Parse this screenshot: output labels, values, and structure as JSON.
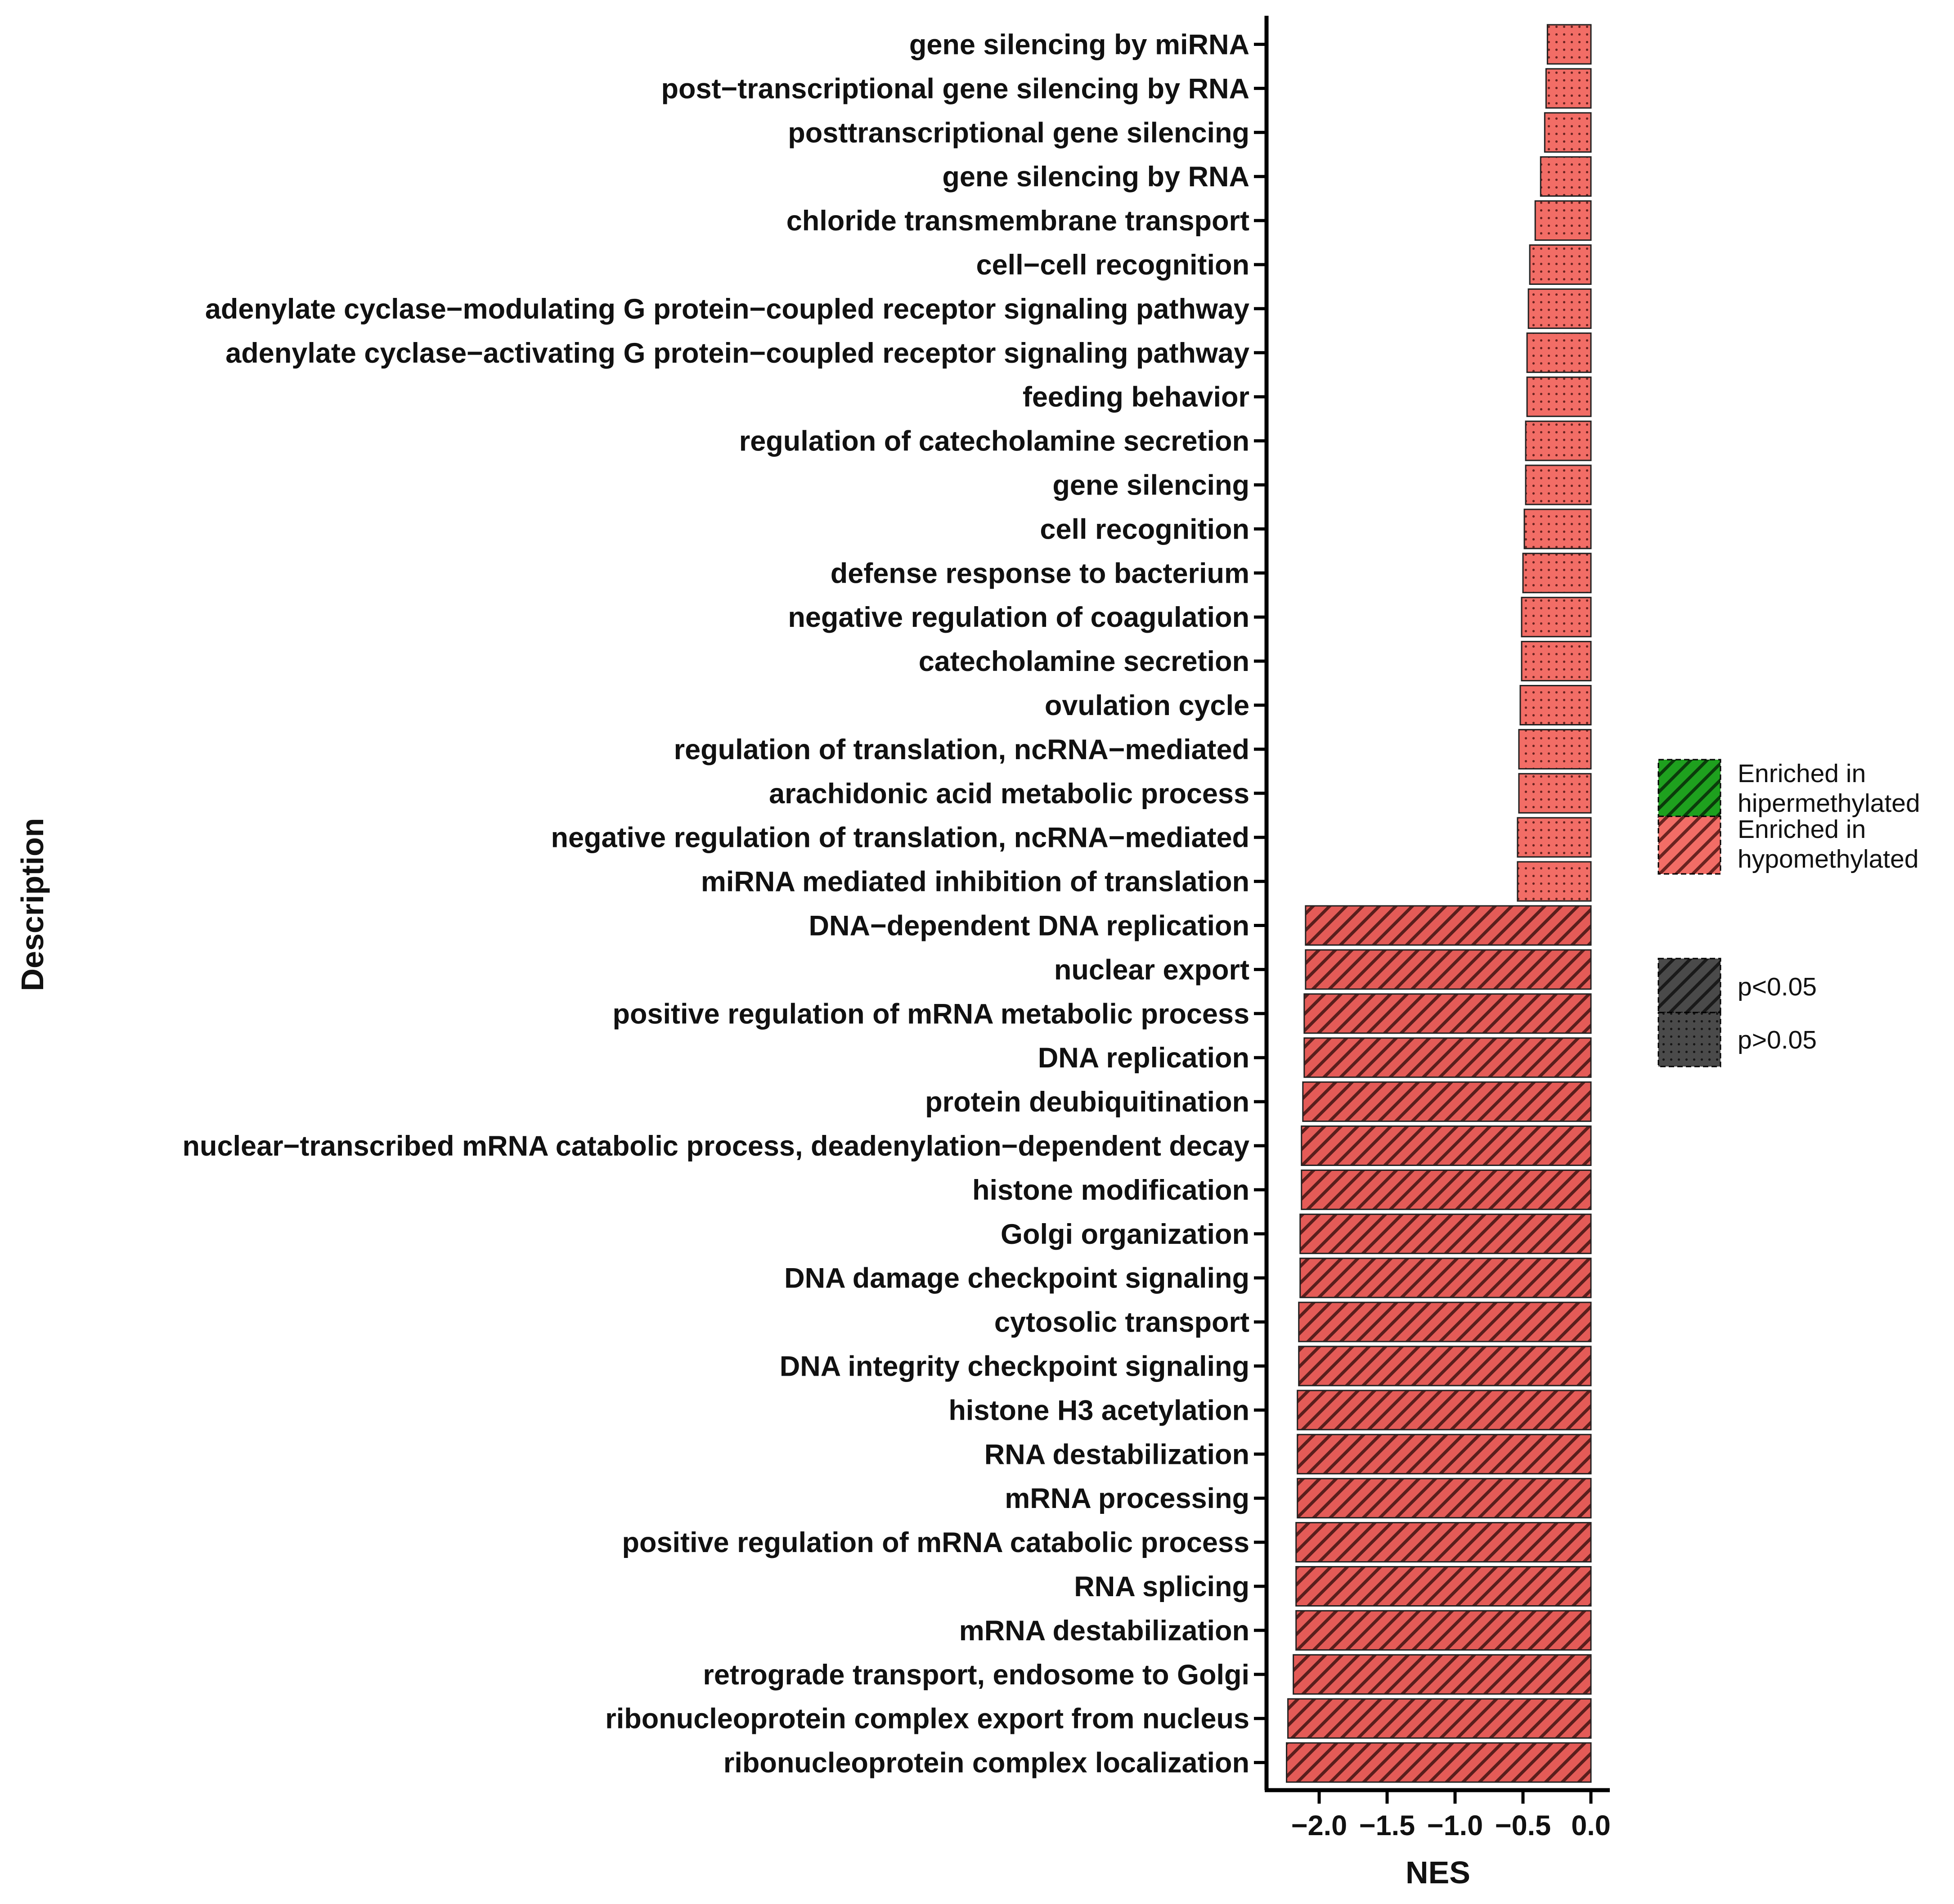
{
  "chart_data": {
    "type": "bar",
    "orientation": "horizontal",
    "xlabel": "NES",
    "ylabel": "Description",
    "xlim": [
      -2.35,
      0.1
    ],
    "xticks": [
      -2.0,
      -1.5,
      -1.0,
      -0.5,
      0.0
    ],
    "xtick_labels": [
      "−2.0",
      "−1.5",
      "−1.0",
      "−0.5",
      "0.0"
    ],
    "grid": false,
    "legend_position": "right",
    "categories": [
      "gene silencing by miRNA",
      "post−transcriptional gene silencing by RNA",
      "posttranscriptional gene silencing",
      "gene silencing by RNA",
      "chloride transmembrane transport",
      "cell−cell recognition",
      "adenylate cyclase−modulating G protein−coupled receptor signaling pathway",
      "adenylate cyclase−activating G protein−coupled receptor signaling pathway",
      "feeding behavior",
      "regulation of catecholamine secretion",
      "gene silencing",
      "cell recognition",
      "defense response to bacterium",
      "negative regulation of coagulation",
      "catecholamine secretion",
      "ovulation cycle",
      "regulation of translation, ncRNA−mediated",
      "arachidonic acid metabolic process",
      "negative regulation of translation, ncRNA−mediated",
      "miRNA mediated inhibition of translation",
      "DNA−dependent DNA replication",
      "nuclear export",
      "positive regulation of mRNA metabolic process",
      "DNA replication",
      "protein deubiquitination",
      "nuclear−transcribed mRNA catabolic process, deadenylation−dependent decay",
      "histone modification",
      "Golgi organization",
      "DNA damage checkpoint signaling",
      "cytosolic transport",
      "DNA integrity checkpoint signaling",
      "histone H3 acetylation",
      "RNA destabilization",
      "mRNA processing",
      "positive regulation of mRNA catabolic process",
      "RNA splicing",
      "mRNA destabilization",
      "retrograde transport, endosome to Golgi",
      "ribonucleoprotein complex export from nucleus",
      "ribonucleoprotein complex localization"
    ],
    "values": [
      -0.32,
      -0.33,
      -0.34,
      -0.37,
      -0.41,
      -0.45,
      -0.46,
      -0.47,
      -0.47,
      -0.48,
      -0.48,
      -0.49,
      -0.5,
      -0.51,
      -0.51,
      -0.52,
      -0.53,
      -0.53,
      -0.54,
      -0.54,
      -2.1,
      -2.1,
      -2.11,
      -2.11,
      -2.12,
      -2.13,
      -2.13,
      -2.14,
      -2.14,
      -2.15,
      -2.15,
      -2.16,
      -2.16,
      -2.16,
      -2.17,
      -2.17,
      -2.17,
      -2.19,
      -2.23,
      -2.24
    ],
    "significance": [
      "p>0.05",
      "p>0.05",
      "p>0.05",
      "p>0.05",
      "p>0.05",
      "p>0.05",
      "p>0.05",
      "p>0.05",
      "p>0.05",
      "p>0.05",
      "p>0.05",
      "p>0.05",
      "p>0.05",
      "p>0.05",
      "p>0.05",
      "p>0.05",
      "p>0.05",
      "p>0.05",
      "p>0.05",
      "p>0.05",
      "p<0.05",
      "p<0.05",
      "p<0.05",
      "p<0.05",
      "p<0.05",
      "p<0.05",
      "p<0.05",
      "p<0.05",
      "p<0.05",
      "p<0.05",
      "p<0.05",
      "p<0.05",
      "p<0.05",
      "p<0.05",
      "p<0.05",
      "p<0.05",
      "p<0.05",
      "p<0.05",
      "p<0.05",
      "p<0.05"
    ],
    "group": "Enriched in\n hypomethylated",
    "legend": {
      "fill": [
        {
          "label": "Enriched in\n hipermethylated",
          "color": "#1ea01e"
        },
        {
          "label": "Enriched in\n hypomethylated",
          "color": "#f26d66"
        }
      ],
      "pattern": [
        {
          "label": "p<0.05",
          "pattern": "stripe"
        },
        {
          "label": "p>0.05",
          "pattern": "dots"
        }
      ]
    },
    "colors": {
      "hypo_stripe_fill": "#e45b57",
      "hypo_dot_fill": "#f26d66",
      "hyper_fill": "#1ea01e",
      "pattern_legend_fill": "#4a4a4a",
      "axis": "#000000"
    }
  }
}
